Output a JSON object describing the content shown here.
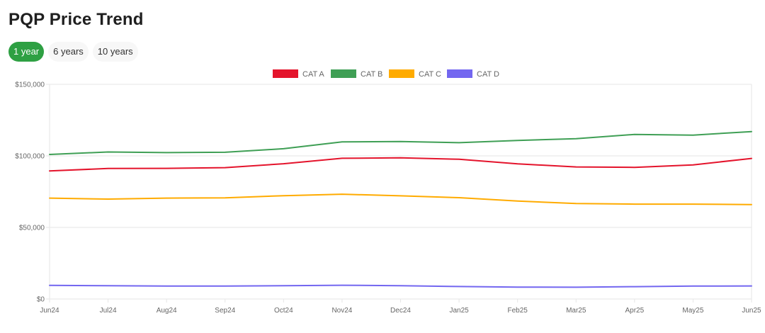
{
  "title": "PQP Price Trend",
  "range_tabs": [
    {
      "label": "1 year",
      "active": true
    },
    {
      "label": "6 years",
      "active": false
    },
    {
      "label": "10 years",
      "active": false
    }
  ],
  "colors": {
    "accent": "#2ea043",
    "grid": "#e6e6e6"
  },
  "chart_data": {
    "type": "line",
    "title": "",
    "xlabel": "",
    "ylabel": "",
    "legend_position": "top-center",
    "grid": true,
    "ylim": [
      0,
      150000
    ],
    "y_ticks": [
      0,
      50000,
      100000,
      150000
    ],
    "y_tick_labels": [
      "$0",
      "$50,000",
      "$100,000",
      "$150,000"
    ],
    "categories": [
      "Jun24",
      "Jul24",
      "Aug24",
      "Sep24",
      "Oct24",
      "Nov24",
      "Dec24",
      "Jan25",
      "Feb25",
      "Mar25",
      "Apr25",
      "May25",
      "Jun25"
    ],
    "series": [
      {
        "name": "CAT A",
        "color": "#e4142c",
        "values": [
          89500,
          91200,
          91300,
          91800,
          94500,
          98300,
          98600,
          97600,
          94400,
          92300,
          92000,
          93700,
          98200
        ]
      },
      {
        "name": "CAT B",
        "color": "#3f9f55",
        "values": [
          101000,
          102700,
          102300,
          102500,
          105000,
          109800,
          110000,
          109200,
          110800,
          112000,
          115000,
          114500,
          117000
        ]
      },
      {
        "name": "CAT C",
        "color": "#ffab00",
        "values": [
          70500,
          69800,
          70500,
          70700,
          72200,
          73200,
          72100,
          70800,
          68400,
          66700,
          66300,
          66300,
          66000
        ]
      },
      {
        "name": "CAT D",
        "color": "#7367f0",
        "values": [
          9500,
          9300,
          9000,
          9000,
          9300,
          9600,
          9300,
          8700,
          8300,
          8200,
          8600,
          9000,
          9100
        ]
      }
    ]
  }
}
